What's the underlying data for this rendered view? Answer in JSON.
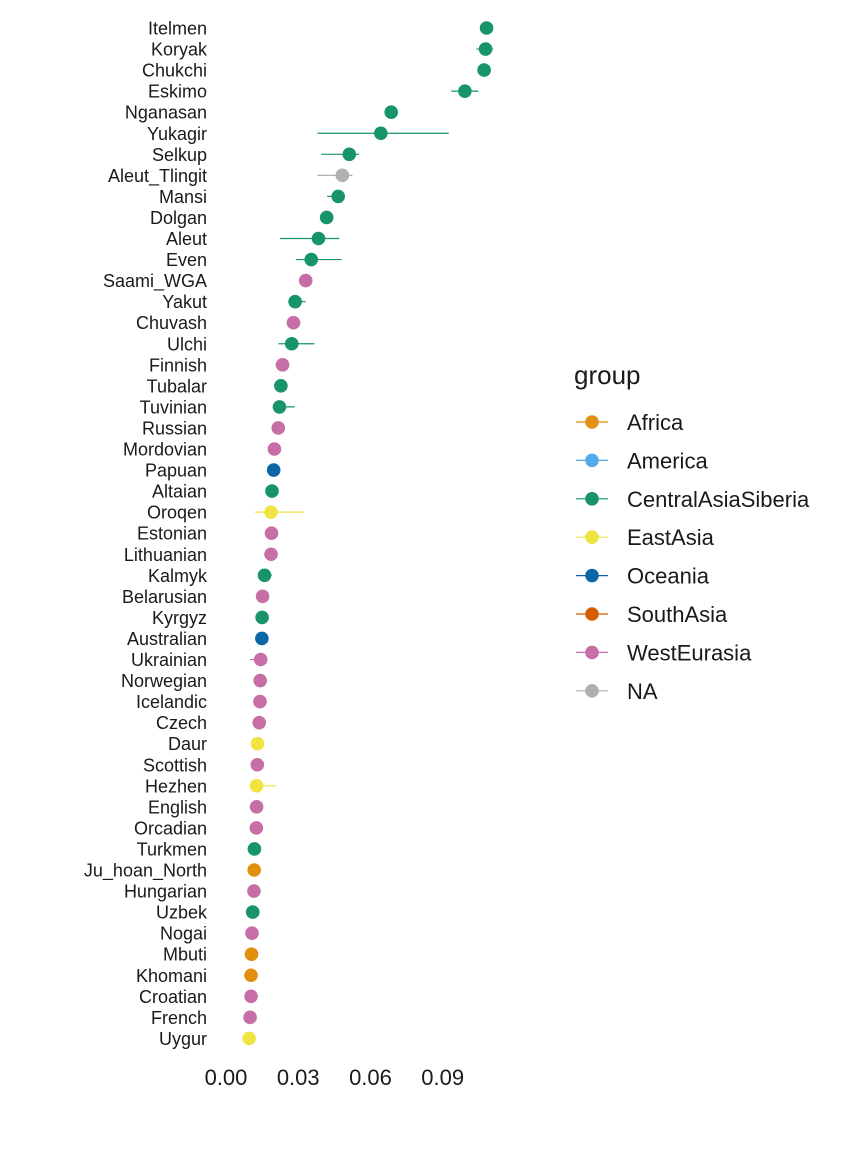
{
  "colors": {
    "Africa": "#E08F0E",
    "America": "#56A9E8",
    "CentralAsiaSiberia": "#17946A",
    "EastAsia": "#F0E442",
    "Oceania": "#0B66A8",
    "SouthAsia": "#D55E00",
    "WestEurasia": "#C76EA6",
    "NA": "#B0B0B0"
  },
  "chart_data": {
    "type": "scatter",
    "subtype": "dot-with-error-bars",
    "title": "",
    "xlabel": "",
    "ylabel": "",
    "xlim": [
      0,
      0.105
    ],
    "x_ticks": [
      0.0,
      0.03,
      0.06,
      0.09
    ],
    "x_tick_labels": [
      "0.00",
      "0.03",
      "0.06",
      "0.09"
    ],
    "grid": false,
    "legend_position": "right",
    "legend_title": "group",
    "legend_entries": [
      "Africa",
      "America",
      "CentralAsiaSiberia",
      "EastAsia",
      "Oceania",
      "SouthAsia",
      "WestEurasia",
      "NA"
    ],
    "points": [
      {
        "label": "Itelmen",
        "group": "CentralAsiaSiberia",
        "x": 0.1082,
        "lo": 0.107,
        "hi": 0.1094
      },
      {
        "label": "Koryak",
        "group": "CentralAsiaSiberia",
        "x": 0.1078,
        "lo": 0.104,
        "hi": 0.111
      },
      {
        "label": "Chukchi",
        "group": "CentralAsiaSiberia",
        "x": 0.1072,
        "lo": 0.105,
        "hi": 0.1094
      },
      {
        "label": "Eskimo",
        "group": "CentralAsiaSiberia",
        "x": 0.0992,
        "lo": 0.0935,
        "hi": 0.1048
      },
      {
        "label": "Nganasan",
        "group": "CentralAsiaSiberia",
        "x": 0.0686,
        "lo": 0.066,
        "hi": 0.0712
      },
      {
        "label": "Yukagir",
        "group": "CentralAsiaSiberia",
        "x": 0.0643,
        "lo": 0.038,
        "hi": 0.0925
      },
      {
        "label": "Selkup",
        "group": "CentralAsiaSiberia",
        "x": 0.0512,
        "lo": 0.0395,
        "hi": 0.0552
      },
      {
        "label": "Aleut_Tlingit",
        "group": "NA",
        "x": 0.0483,
        "lo": 0.038,
        "hi": 0.0525
      },
      {
        "label": "Mansi",
        "group": "CentralAsiaSiberia",
        "x": 0.0466,
        "lo": 0.042,
        "hi": 0.049
      },
      {
        "label": "Dolgan",
        "group": "CentralAsiaSiberia",
        "x": 0.0418,
        "lo": 0.0405,
        "hi": 0.0432
      },
      {
        "label": "Aleut",
        "group": "CentralAsiaSiberia",
        "x": 0.0384,
        "lo": 0.0225,
        "hi": 0.047
      },
      {
        "label": "Even",
        "group": "CentralAsiaSiberia",
        "x": 0.0354,
        "lo": 0.029,
        "hi": 0.048
      },
      {
        "label": "Saami_WGA",
        "group": "WestEurasia",
        "x": 0.0331,
        "lo": 0.032,
        "hi": 0.0342
      },
      {
        "label": "Yakut",
        "group": "CentralAsiaSiberia",
        "x": 0.0287,
        "lo": 0.0265,
        "hi": 0.033
      },
      {
        "label": "Chuvash",
        "group": "WestEurasia",
        "x": 0.028,
        "lo": 0.0258,
        "hi": 0.031
      },
      {
        "label": "Ulchi",
        "group": "CentralAsiaSiberia",
        "x": 0.0273,
        "lo": 0.0218,
        "hi": 0.0368
      },
      {
        "label": "Finnish",
        "group": "WestEurasia",
        "x": 0.0235,
        "lo": 0.0205,
        "hi": 0.0263
      },
      {
        "label": "Tubalar",
        "group": "CentralAsiaSiberia",
        "x": 0.0228,
        "lo": 0.021,
        "hi": 0.0248
      },
      {
        "label": "Tuvinian",
        "group": "CentralAsiaSiberia",
        "x": 0.0222,
        "lo": 0.0195,
        "hi": 0.0285
      },
      {
        "label": "Russian",
        "group": "WestEurasia",
        "x": 0.0217,
        "lo": 0.0198,
        "hi": 0.0232
      },
      {
        "label": "Mordovian",
        "group": "WestEurasia",
        "x": 0.0201,
        "lo": 0.019,
        "hi": 0.0212
      },
      {
        "label": "Papuan",
        "group": "Oceania",
        "x": 0.0198,
        "lo": 0.019,
        "hi": 0.0206
      },
      {
        "label": "Altaian",
        "group": "CentralAsiaSiberia",
        "x": 0.0191,
        "lo": 0.0175,
        "hi": 0.021
      },
      {
        "label": "Oroqen",
        "group": "EastAsia",
        "x": 0.0187,
        "lo": 0.012,
        "hi": 0.0325
      },
      {
        "label": "Estonian",
        "group": "WestEurasia",
        "x": 0.0189,
        "lo": 0.018,
        "hi": 0.0198
      },
      {
        "label": "Lithuanian",
        "group": "WestEurasia",
        "x": 0.0187,
        "lo": 0.0178,
        "hi": 0.0196
      },
      {
        "label": "Kalmyk",
        "group": "CentralAsiaSiberia",
        "x": 0.016,
        "lo": 0.014,
        "hi": 0.019
      },
      {
        "label": "Belarusian",
        "group": "WestEurasia",
        "x": 0.0152,
        "lo": 0.0143,
        "hi": 0.0161
      },
      {
        "label": "Kyrgyz",
        "group": "CentralAsiaSiberia",
        "x": 0.015,
        "lo": 0.014,
        "hi": 0.016
      },
      {
        "label": "Australian",
        "group": "Oceania",
        "x": 0.0149,
        "lo": 0.014,
        "hi": 0.0158
      },
      {
        "label": "Ukrainian",
        "group": "WestEurasia",
        "x": 0.0144,
        "lo": 0.01,
        "hi": 0.0165
      },
      {
        "label": "Norwegian",
        "group": "WestEurasia",
        "x": 0.0142,
        "lo": 0.0133,
        "hi": 0.0151
      },
      {
        "label": "Icelandic",
        "group": "WestEurasia",
        "x": 0.0141,
        "lo": 0.0132,
        "hi": 0.015
      },
      {
        "label": "Czech",
        "group": "WestEurasia",
        "x": 0.0138,
        "lo": 0.0129,
        "hi": 0.0147
      },
      {
        "label": "Daur",
        "group": "EastAsia",
        "x": 0.0131,
        "lo": 0.0105,
        "hi": 0.0155
      },
      {
        "label": "Scottish",
        "group": "WestEurasia",
        "x": 0.013,
        "lo": 0.0121,
        "hi": 0.0139
      },
      {
        "label": "Hezhen",
        "group": "EastAsia",
        "x": 0.0127,
        "lo": 0.0105,
        "hi": 0.021
      },
      {
        "label": "English",
        "group": "WestEurasia",
        "x": 0.0127,
        "lo": 0.0118,
        "hi": 0.0136
      },
      {
        "label": "Orcadian",
        "group": "WestEurasia",
        "x": 0.0126,
        "lo": 0.0117,
        "hi": 0.0135
      },
      {
        "label": "Turkmen",
        "group": "CentralAsiaSiberia",
        "x": 0.0118,
        "lo": 0.009,
        "hi": 0.0135
      },
      {
        "label": "Ju_hoan_North",
        "group": "Africa",
        "x": 0.0117,
        "lo": 0.0108,
        "hi": 0.0126
      },
      {
        "label": "Hungarian",
        "group": "WestEurasia",
        "x": 0.0116,
        "lo": 0.0107,
        "hi": 0.0125
      },
      {
        "label": "Uzbek",
        "group": "CentralAsiaSiberia",
        "x": 0.0111,
        "lo": 0.0095,
        "hi": 0.0135
      },
      {
        "label": "Nogai",
        "group": "WestEurasia",
        "x": 0.0108,
        "lo": 0.0085,
        "hi": 0.0122
      },
      {
        "label": "Mbuti",
        "group": "Africa",
        "x": 0.0106,
        "lo": 0.0097,
        "hi": 0.0115
      },
      {
        "label": "Khomani",
        "group": "Africa",
        "x": 0.0104,
        "lo": 0.0088,
        "hi": 0.0116
      },
      {
        "label": "Croatian",
        "group": "WestEurasia",
        "x": 0.0104,
        "lo": 0.0095,
        "hi": 0.0113
      },
      {
        "label": "French",
        "group": "WestEurasia",
        "x": 0.01,
        "lo": 0.0085,
        "hi": 0.0125
      },
      {
        "label": "Uygur",
        "group": "EastAsia",
        "x": 0.0096,
        "lo": 0.0085,
        "hi": 0.0112
      }
    ]
  }
}
